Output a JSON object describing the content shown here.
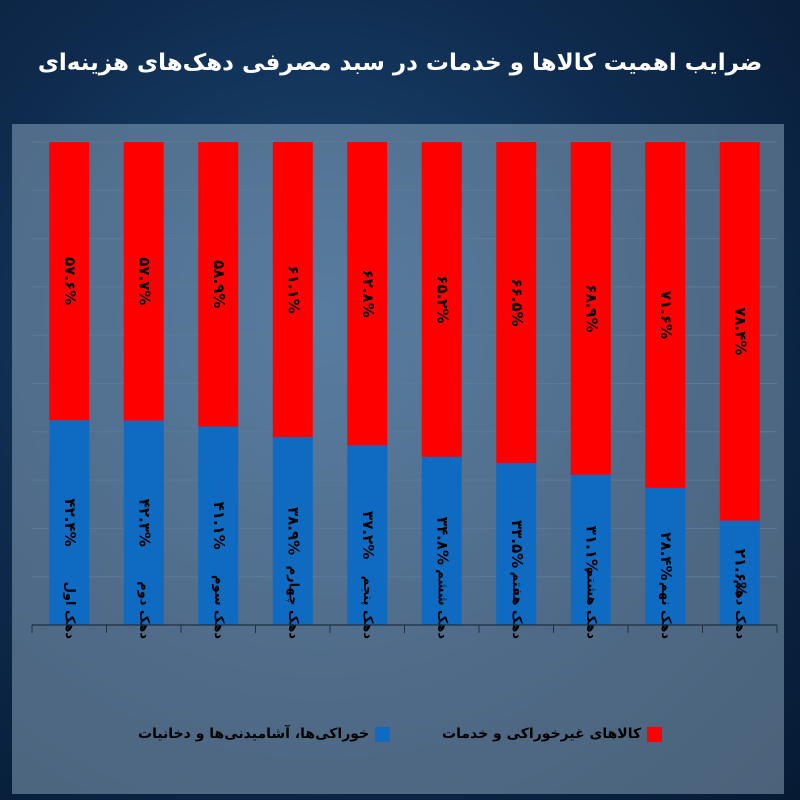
{
  "title": "ضرایب اهمیت کالاها و خدمات در سبد مصرفی دهک‌های هزینه‌ای",
  "colors": {
    "food": "#0e6bc1",
    "nonfood": "#ff0000",
    "grid": "#5c7a97"
  },
  "chart_data": {
    "type": "bar",
    "stacked": true,
    "percent": true,
    "categories": [
      "دهک اول",
      "دهک دوم",
      "دهک سوم",
      "دهک چهارم",
      "دهک پنجم",
      "دهک ششم",
      "دهک هفتم",
      "دهک هشتم",
      "دهک نهم",
      "دهک دهم"
    ],
    "series": [
      {
        "name": "خوراکی‌ها، آشامیدنی‌ها و دخانیات",
        "values": [
          42.4,
          42.3,
          41.1,
          38.9,
          37.2,
          34.8,
          33.5,
          31.1,
          28.4,
          21.6
        ],
        "labels": [
          "۴۲.۴%",
          "۴۲.۳%",
          "۴۱.۱%",
          "۳۸.۹%",
          "۳۷.۲%",
          "۳۴.۸%",
          "۳۳.۵%",
          "۳۱.۱%",
          "۲۸.۴%",
          "۲۱.۶%"
        ]
      },
      {
        "name": "کالاهای غیرخوراکی و خدمات",
        "values": [
          57.6,
          57.7,
          58.9,
          61.1,
          62.8,
          65.2,
          66.5,
          68.9,
          71.6,
          78.4
        ],
        "labels": [
          "۵۷.۶%",
          "۵۷.۷%",
          "۵۸.۹%",
          "۶۱.۱%",
          "۶۲.۸%",
          "۶۵.۲%",
          "۶۶.۵%",
          "۶۸.۹%",
          "۷۱.۶%",
          "۷۸.۴%"
        ]
      }
    ],
    "ylim": [
      0,
      100
    ],
    "grid": true,
    "legend": "bottom"
  }
}
